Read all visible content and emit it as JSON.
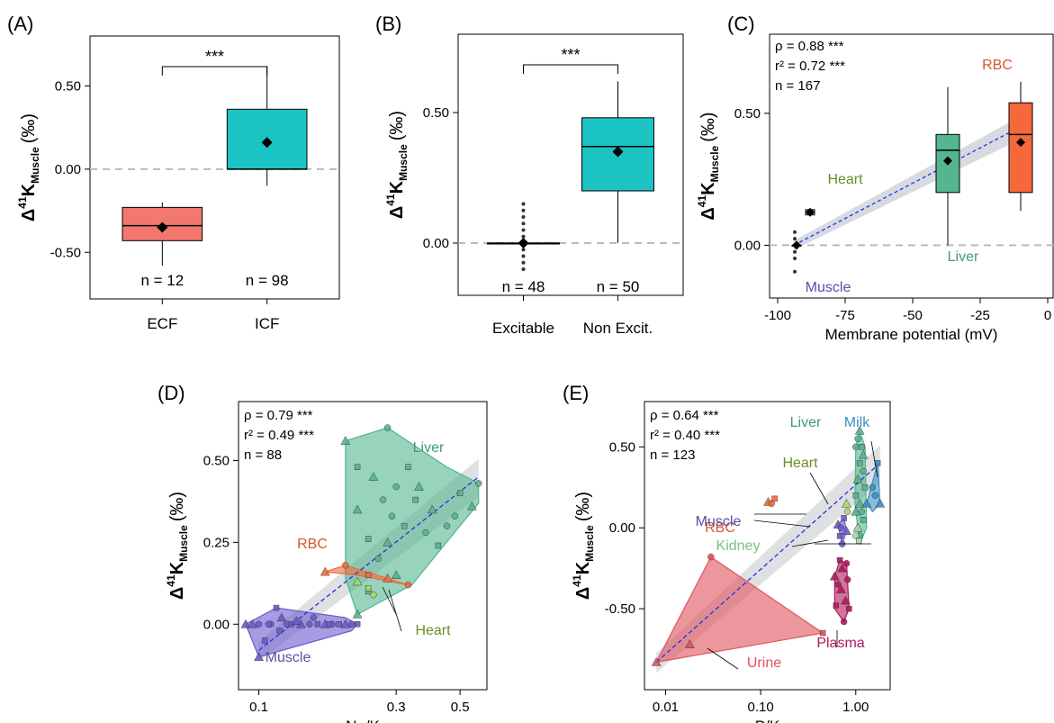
{
  "ylabel": {
    "prefix": "Δ",
    "sup": "41",
    "main": "K",
    "sub": "Muscle",
    "unit": "(‰)"
  },
  "chart_data": [
    {
      "panel": "(A)",
      "type": "box",
      "categories": [
        "ECF",
        "ICF"
      ],
      "yticks": [
        -0.5,
        0.0,
        0.5
      ],
      "ytick_labels": [
        "-0.50",
        "0.00",
        "0.50"
      ],
      "ylim": [
        -0.78,
        0.8
      ],
      "boxes": [
        {
          "label": "ECF",
          "q1": -0.43,
          "median": -0.34,
          "q3": -0.23,
          "whisker_low": -0.58,
          "whisker_high": -0.2,
          "mean": -0.35,
          "n_label": "n = 12",
          "color": "#f2786e"
        },
        {
          "label": "ICF",
          "q1": 0.0,
          "median": 0.0,
          "q3": 0.36,
          "whisker_low": -0.1,
          "whisker_high": 0.62,
          "mean": 0.16,
          "n_label": "n = 98",
          "color": "#1bc3c3"
        }
      ],
      "significance": "***"
    },
    {
      "panel": "(B)",
      "type": "box",
      "categories": [
        "Excitable",
        "Non Excit."
      ],
      "yticks": [
        0.0,
        0.5
      ],
      "ytick_labels": [
        "0.00",
        "0.50"
      ],
      "ylim": [
        -0.2,
        0.8
      ],
      "boxes": [
        {
          "label": "Excitable",
          "q1": 0.0,
          "median": 0.0,
          "q3": 0.0,
          "whisker_low": 0.0,
          "whisker_high": 0.0,
          "mean": 0.0,
          "n_label": "n = 48",
          "color": "#1bc3c3",
          "outliers": [
            0.15,
            0.125,
            0.1,
            0.075,
            0.05,
            0.025,
            -0.025,
            -0.05,
            -0.075,
            -0.1
          ]
        },
        {
          "label": "Non Excit.",
          "q1": 0.2,
          "median": 0.37,
          "q3": 0.48,
          "whisker_low": 0.0,
          "whisker_high": 0.62,
          "mean": 0.35,
          "n_label": "n = 50",
          "color": "#1bc3c3"
        }
      ],
      "significance": "***"
    },
    {
      "panel": "(C)",
      "type": "box",
      "xlabel": "Membrane potential (mV)",
      "xticks": [
        -100,
        -75,
        -50,
        -25,
        0
      ],
      "xlim": [
        -103,
        2
      ],
      "yticks": [
        0.0,
        0.5
      ],
      "ytick_labels": [
        "0.00",
        "0.50"
      ],
      "ylim": [
        -0.2,
        0.8
      ],
      "stats": [
        "ρ = 0.88 ***",
        "r² = 0.72 ***",
        "n = 167"
      ],
      "fit": {
        "x": [
          -94,
          -8
        ],
        "y": [
          0.0,
          0.46
        ]
      },
      "boxes": [
        {
          "label": "Muscle",
          "x": -93,
          "q1": 0.0,
          "median": 0.0,
          "q3": 0.0,
          "whisker_low": 0.0,
          "whisker_high": 0.0,
          "mean": 0.0,
          "color": "#6a5acd",
          "outliers": [
            0.05,
            0.025,
            -0.025,
            -0.05,
            -0.1
          ]
        },
        {
          "label": "Heart",
          "x": -88,
          "q1": 0.115,
          "median": 0.125,
          "q3": 0.135,
          "whisker_low": 0.115,
          "whisker_high": 0.135,
          "mean": 0.125,
          "color": "#a6d96a"
        },
        {
          "label": "Liver",
          "x": -37,
          "q1": 0.2,
          "median": 0.36,
          "q3": 0.42,
          "whisker_low": 0.0,
          "whisker_high": 0.6,
          "mean": 0.32,
          "color": "#54b58f"
        },
        {
          "label": "RBC",
          "x": -10,
          "q1": 0.2,
          "median": 0.42,
          "q3": 0.54,
          "whisker_low": 0.13,
          "whisker_high": 0.62,
          "mean": 0.39,
          "color": "#f4683c"
        }
      ],
      "group_labels": [
        {
          "text": "Heart",
          "color": "#6b8e23"
        },
        {
          "text": "Liver",
          "color": "#3c9d7a"
        },
        {
          "text": "RBC",
          "color": "#d9552c"
        },
        {
          "text": "Muscle",
          "color": "#5b4ea8"
        }
      ]
    },
    {
      "panel": "(D)",
      "type": "scatter",
      "xscale": "log",
      "xlabel": "Na/K",
      "xticks": [
        0.1,
        0.3,
        0.5
      ],
      "xtick_labels": [
        "0.1",
        "0.3",
        "0.5"
      ],
      "xlim": [
        0.085,
        0.62
      ],
      "yticks": [
        0.0,
        0.25,
        0.5
      ],
      "ytick_labels": [
        "0.00",
        "0.25",
        "0.50"
      ],
      "ylim": [
        -0.2,
        0.68
      ],
      "stats": [
        "ρ = 0.79 ***",
        "r² = 0.49 ***",
        "n = 88"
      ],
      "fit": {
        "x": [
          0.1,
          0.58
        ],
        "y": [
          -0.08,
          0.45
        ]
      },
      "series": [
        {
          "name": "Liver",
          "color": "#54b58f",
          "hull": [
            [
              0.2,
              0.56
            ],
            [
              0.28,
              0.6
            ],
            [
              0.45,
              0.48
            ],
            [
              0.58,
              0.43
            ],
            [
              0.58,
              0.37
            ],
            [
              0.34,
              0.12
            ],
            [
              0.22,
              0.03
            ],
            [
              0.2,
              0.14
            ]
          ],
          "points": [
            [
              0.2,
              0.56
            ],
            [
              0.28,
              0.6
            ],
            [
              0.22,
              0.48
            ],
            [
              0.25,
              0.45
            ],
            [
              0.3,
              0.42
            ],
            [
              0.35,
              0.38
            ],
            [
              0.4,
              0.35
            ],
            [
              0.45,
              0.3
            ],
            [
              0.5,
              0.4
            ],
            [
              0.55,
              0.36
            ],
            [
              0.58,
              0.43
            ],
            [
              0.32,
              0.3
            ],
            [
              0.28,
              0.25
            ],
            [
              0.26,
              0.2
            ],
            [
              0.24,
              0.1
            ],
            [
              0.3,
              0.15
            ],
            [
              0.38,
              0.28
            ],
            [
              0.42,
              0.24
            ],
            [
              0.22,
              0.35
            ],
            [
              0.27,
              0.38
            ],
            [
              0.33,
              0.48
            ],
            [
              0.36,
              0.42
            ],
            [
              0.48,
              0.33
            ],
            [
              0.24,
              0.26
            ],
            [
              0.22,
              0.03
            ],
            [
              0.29,
              0.33
            ]
          ]
        },
        {
          "name": "Muscle",
          "color": "#6a5acd",
          "hull": [
            [
              0.09,
              0.0
            ],
            [
              0.115,
              0.05
            ],
            [
              0.2,
              0.02
            ],
            [
              0.22,
              0.0
            ],
            [
              0.21,
              -0.02
            ],
            [
              0.1,
              -0.1
            ]
          ],
          "points": [
            [
              0.09,
              0.0
            ],
            [
              0.1,
              0.0
            ],
            [
              0.105,
              -0.05
            ],
            [
              0.1,
              -0.1
            ],
            [
              0.11,
              0.0
            ],
            [
              0.115,
              0.05
            ],
            [
              0.12,
              0.02
            ],
            [
              0.125,
              0.0
            ],
            [
              0.13,
              0.0
            ],
            [
              0.14,
              0.0
            ],
            [
              0.15,
              0.0
            ],
            [
              0.16,
              0.0
            ],
            [
              0.17,
              0.0
            ],
            [
              0.18,
              0.0
            ],
            [
              0.19,
              0.0
            ],
            [
              0.2,
              0.0
            ],
            [
              0.21,
              0.0
            ],
            [
              0.22,
              0.0
            ],
            [
              0.095,
              0.0
            ],
            [
              0.108,
              0.0
            ],
            [
              0.118,
              -0.02
            ],
            [
              0.135,
              0.01
            ],
            [
              0.155,
              0.02
            ],
            [
              0.175,
              0.0
            ]
          ]
        },
        {
          "name": "RBC",
          "color": "#f4683c",
          "hull": [
            [
              0.17,
              0.16
            ],
            [
              0.2,
              0.18
            ],
            [
              0.33,
              0.12
            ],
            [
              0.22,
              0.15
            ]
          ],
          "points": [
            [
              0.17,
              0.16
            ],
            [
              0.2,
              0.18
            ],
            [
              0.24,
              0.15
            ],
            [
              0.28,
              0.14
            ],
            [
              0.33,
              0.12
            ]
          ]
        },
        {
          "name": "Heart",
          "color": "#a6d96a",
          "hull": [],
          "points": [
            [
              0.22,
              0.13
            ],
            [
              0.25,
              0.09
            ],
            [
              0.24,
              0.11
            ]
          ]
        }
      ],
      "group_labels": [
        {
          "text": "Liver",
          "color": "#3c9d7a"
        },
        {
          "text": "RBC",
          "color": "#d9552c"
        },
        {
          "text": "Heart",
          "color": "#6b8e23"
        },
        {
          "text": "Muscle",
          "color": "#5b4ea8"
        }
      ]
    },
    {
      "panel": "(E)",
      "type": "scatter",
      "xscale": "log",
      "xlabel": "P/K",
      "xticks": [
        0.01,
        0.1,
        1.0
      ],
      "xtick_labels": [
        "0.01",
        "0.10",
        "1.00"
      ],
      "xlim": [
        0.006,
        2.3
      ],
      "yticks": [
        -0.5,
        0.0,
        0.5
      ],
      "ytick_labels": [
        "-0.50",
        "0.00",
        "0.50"
      ],
      "ylim": [
        -1.0,
        0.78
      ],
      "stats": [
        "ρ = 0.64 ***",
        "r² = 0.40 ***",
        "n = 123"
      ],
      "fit": {
        "x": [
          0.008,
          1.8
        ],
        "y": [
          -0.83,
          0.4
        ]
      },
      "series": [
        {
          "name": "Urine",
          "color": "#e0525c",
          "hull": [
            [
              0.008,
              -0.83
            ],
            [
              0.03,
              -0.18
            ],
            [
              0.45,
              -0.65
            ]
          ],
          "points": [
            [
              0.008,
              -0.83
            ],
            [
              0.03,
              -0.18
            ],
            [
              0.45,
              -0.65
            ],
            [
              0.018,
              -0.72
            ]
          ]
        },
        {
          "name": "Plasma",
          "color": "#b2185b",
          "hull": [
            [
              0.6,
              -0.3
            ],
            [
              0.68,
              -0.2
            ],
            [
              0.8,
              -0.22
            ],
            [
              0.85,
              -0.5
            ],
            [
              0.75,
              -0.58
            ],
            [
              0.6,
              -0.5
            ]
          ],
          "points": [
            [
              0.6,
              -0.3
            ],
            [
              0.65,
              -0.35
            ],
            [
              0.68,
              -0.2
            ],
            [
              0.72,
              -0.25
            ],
            [
              0.8,
              -0.22
            ],
            [
              0.85,
              -0.5
            ],
            [
              0.78,
              -0.45
            ],
            [
              0.75,
              -0.58
            ],
            [
              0.62,
              -0.48
            ],
            [
              0.7,
              -0.38
            ],
            [
              0.82,
              -0.32
            ]
          ]
        },
        {
          "name": "Liver",
          "color": "#54b58f",
          "hull": [
            [
              1.0,
              0.5
            ],
            [
              1.1,
              0.6
            ],
            [
              1.25,
              0.5
            ],
            [
              1.3,
              0.0
            ],
            [
              1.1,
              -0.1
            ],
            [
              0.98,
              0.15
            ]
          ],
          "points": [
            [
              1.1,
              0.6
            ],
            [
              1.05,
              0.55
            ],
            [
              1.15,
              0.5
            ],
            [
              1.2,
              0.45
            ],
            [
              1.0,
              0.5
            ],
            [
              1.1,
              0.4
            ],
            [
              1.05,
              0.3
            ],
            [
              1.2,
              0.35
            ],
            [
              1.0,
              0.2
            ],
            [
              1.1,
              0.15
            ],
            [
              1.15,
              0.1
            ],
            [
              1.2,
              0.05
            ],
            [
              1.05,
              0.0
            ],
            [
              1.1,
              -0.05
            ],
            [
              1.25,
              0.25
            ],
            [
              1.0,
              0.1
            ]
          ]
        },
        {
          "name": "Milk",
          "color": "#3b8fc4",
          "hull": [
            [
              1.3,
              0.15
            ],
            [
              1.7,
              0.4
            ],
            [
              1.8,
              0.15
            ],
            [
              1.5,
              0.1
            ]
          ],
          "points": [
            [
              1.3,
              0.15
            ],
            [
              1.5,
              0.25
            ],
            [
              1.7,
              0.4
            ],
            [
              1.8,
              0.15
            ],
            [
              1.6,
              0.2
            ]
          ]
        },
        {
          "name": "Heart",
          "color": "#a6d96a",
          "hull": [],
          "points": [
            [
              0.8,
              0.15
            ],
            [
              0.82,
              0.1
            ]
          ]
        },
        {
          "name": "RBC",
          "color": "#f4683c",
          "hull": [],
          "points": [
            [
              0.12,
              0.16
            ],
            [
              0.13,
              0.15
            ],
            [
              0.14,
              0.18
            ]
          ]
        },
        {
          "name": "Muscle",
          "color": "#6a5acd",
          "hull": [
            [
              0.65,
              0.02
            ],
            [
              0.75,
              0.06
            ],
            [
              0.8,
              -0.02
            ],
            [
              0.72,
              -0.1
            ]
          ],
          "points": [
            [
              0.65,
              0.02
            ],
            [
              0.7,
              0.0
            ],
            [
              0.75,
              0.06
            ],
            [
              0.8,
              -0.02
            ],
            [
              0.72,
              -0.1
            ],
            [
              0.68,
              -0.05
            ]
          ]
        },
        {
          "name": "Kidney",
          "color": "#a8dba8",
          "hull": [],
          "points": [
            [
              1.05,
              0.0
            ],
            [
              1.0,
              -0.05
            ],
            [
              1.08,
              -0.08
            ]
          ]
        }
      ],
      "group_labels": [
        {
          "text": "Liver",
          "color": "#3c9d7a"
        },
        {
          "text": "Milk",
          "color": "#3b8fc4"
        },
        {
          "text": "Heart",
          "color": "#6b8e23"
        },
        {
          "text": "RBC",
          "color": "#d9552c"
        },
        {
          "text": "Muscle",
          "color": "#5b4ea8"
        },
        {
          "text": "Kidney",
          "color": "#7fbf7f"
        },
        {
          "text": "Plasma",
          "color": "#b2185b"
        },
        {
          "text": "Urine",
          "color": "#e0525c"
        }
      ]
    }
  ]
}
